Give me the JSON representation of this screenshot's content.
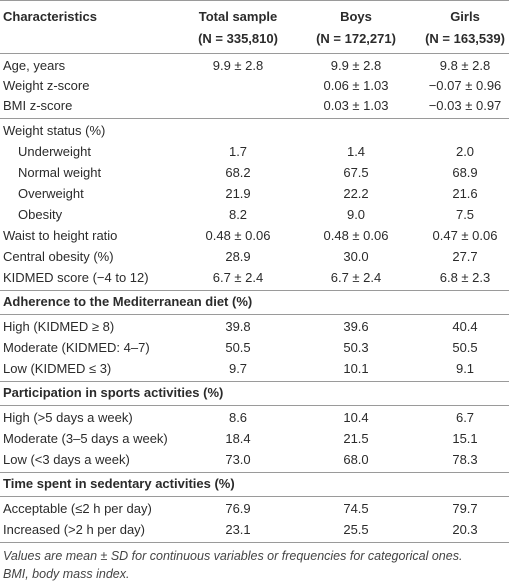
{
  "table": {
    "columns": [
      {
        "title": "Characteristics"
      },
      {
        "title": "Total sample",
        "subtitle": "(N = 335,810)"
      },
      {
        "title": "Boys",
        "subtitle": "(N = 172,271)"
      },
      {
        "title": "Girls",
        "subtitle": "(N = 163,539)"
      }
    ],
    "groups": [
      {
        "rows": [
          {
            "label": "Age, years",
            "total": "9.9 ± 2.8",
            "boys": "9.9 ± 2.8",
            "girls": "9.8 ± 2.8"
          },
          {
            "label": "Weight z-score",
            "boys": "0.06 ± 1.03",
            "girls": "−0.07 ± 0.96"
          },
          {
            "label": "BMI z-score",
            "boys": "0.03 ± 1.03",
            "girls": "−0.03 ± 0.97"
          }
        ]
      },
      {
        "rows": [
          {
            "label": "Weight status (%)"
          },
          {
            "label": "Underweight",
            "indent": true,
            "total": "1.7",
            "boys": "1.4",
            "girls": "2.0"
          },
          {
            "label": "Normal weight",
            "indent": true,
            "total": "68.2",
            "boys": "67.5",
            "girls": "68.9"
          },
          {
            "label": "Overweight",
            "indent": true,
            "total": "21.9",
            "boys": "22.2",
            "girls": "21.6"
          },
          {
            "label": "Obesity",
            "indent": true,
            "total": "8.2",
            "boys": "9.0",
            "girls": "7.5"
          },
          {
            "label": "Waist to height ratio",
            "total": "0.48 ± 0.06",
            "boys": "0.48 ± 0.06",
            "girls": "0.47 ± 0.06"
          },
          {
            "label": "Central obesity (%)",
            "total": "28.9",
            "boys": "30.0",
            "girls": "27.7"
          },
          {
            "label": "KIDMED score (−4 to 12)",
            "total": "6.7 ± 2.4",
            "boys": "6.7 ± 2.4",
            "girls": "6.8 ± 2.3"
          }
        ]
      },
      {
        "heading": "Adherence to the Mediterranean diet (%)",
        "rows": [
          {
            "label": "High (KIDMED ≥ 8)",
            "total": "39.8",
            "boys": "39.6",
            "girls": "40.4"
          },
          {
            "label": "Moderate (KIDMED: 4–7)",
            "total": "50.5",
            "boys": "50.3",
            "girls": "50.5"
          },
          {
            "label": "Low (KIDMED ≤ 3)",
            "total": "9.7",
            "boys": "10.1",
            "girls": "9.1"
          }
        ]
      },
      {
        "heading": "Participation in sports activities (%)",
        "rows": [
          {
            "label": "High (>5 days a week)",
            "total": "8.6",
            "boys": "10.4",
            "girls": "6.7"
          },
          {
            "label": "Moderate (3–5 days a week)",
            "total": "18.4",
            "boys": "21.5",
            "girls": "15.1"
          },
          {
            "label": "Low (<3 days a week)",
            "total": "73.0",
            "boys": "68.0",
            "girls": "78.3"
          }
        ]
      },
      {
        "heading": "Time spent in sedentary activities (%)",
        "rows": [
          {
            "label": "Acceptable (≤2 h per day)",
            "total": "76.9",
            "boys": "74.5",
            "girls": "79.7"
          },
          {
            "label": "Increased (>2 h per day)",
            "total": "23.1",
            "boys": "25.5",
            "girls": "20.3"
          }
        ]
      }
    ],
    "notes": [
      "Values are mean ± SD for continuous variables or frequencies for categorical ones.",
      "BMI, body mass index."
    ]
  }
}
